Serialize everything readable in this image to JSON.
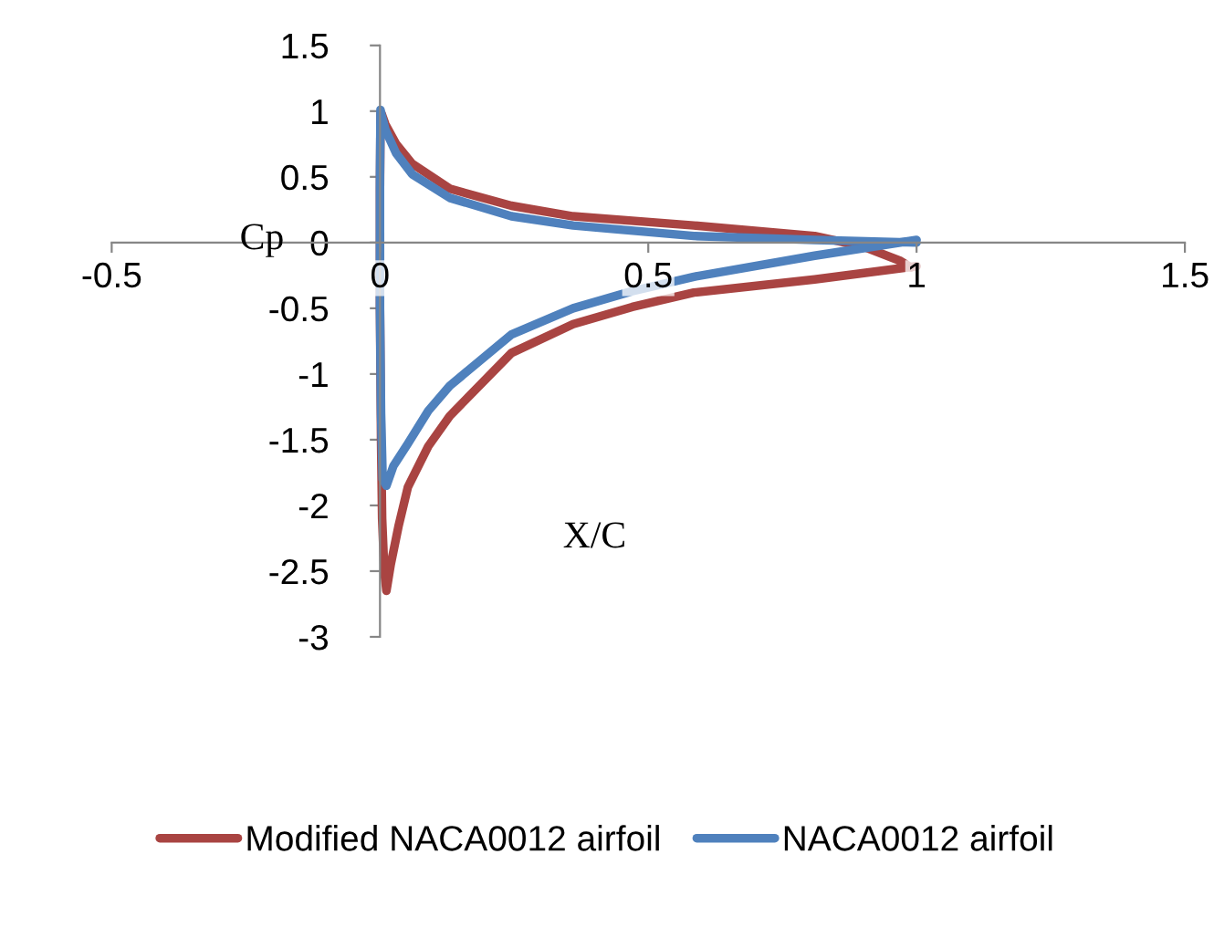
{
  "chart_data": {
    "type": "line",
    "xlabel": "X/C",
    "ylabel": "Cp",
    "xlim": [
      -0.5,
      1.5
    ],
    "xticks": [
      -0.5,
      0,
      0.5,
      1,
      1.5
    ],
    "ylim": [
      -3,
      1.5
    ],
    "yticks": [
      -3,
      -2.5,
      -2,
      -1.5,
      -1,
      -0.5,
      0,
      0.5,
      1,
      1.5
    ],
    "grid": false,
    "legend": "bottom",
    "marker": "none",
    "line_style": "solid",
    "series": [
      {
        "name": "Modified NACA0012 airfoil",
        "color": "#a94442",
        "x": [
          0.99,
          0.97,
          0.9,
          0.81,
          0.585,
          0.36,
          0.245,
          0.13,
          0.06,
          0.03,
          0.01,
          0.003,
          0.001,
          0.0,
          0.0,
          0.002,
          0.004,
          0.008,
          0.012,
          0.02,
          0.035,
          0.052,
          0.09,
          0.13,
          0.245,
          0.36,
          0.47,
          0.585,
          0.81,
          1.0
        ],
        "values": [
          -0.19,
          -0.14,
          -0.03,
          0.05,
          0.13,
          0.2,
          0.28,
          0.41,
          0.6,
          0.75,
          0.9,
          0.98,
          0.98,
          0.4,
          -0.5,
          -1.5,
          -2.1,
          -2.5,
          -2.65,
          -2.45,
          -2.15,
          -1.86,
          -1.55,
          -1.32,
          -0.84,
          -0.62,
          -0.49,
          -0.38,
          -0.28,
          -0.18
        ]
      },
      {
        "name": "NACA0012 airfoil",
        "color": "#4f81bd",
        "x": [
          1.0,
          0.81,
          0.585,
          0.36,
          0.245,
          0.13,
          0.06,
          0.03,
          0.01,
          0.003,
          0.001,
          0.0,
          0.0,
          0.002,
          0.005,
          0.012,
          0.025,
          0.052,
          0.09,
          0.13,
          0.245,
          0.36,
          0.47,
          0.585,
          0.81,
          1.0
        ],
        "values": [
          0.0,
          0.02,
          0.05,
          0.13,
          0.2,
          0.34,
          0.52,
          0.68,
          0.86,
          0.97,
          1.01,
          0.5,
          -0.5,
          -1.3,
          -1.8,
          -1.85,
          -1.7,
          -1.53,
          -1.28,
          -1.09,
          -0.7,
          -0.5,
          -0.37,
          -0.26,
          -0.1,
          0.02
        ]
      }
    ]
  }
}
